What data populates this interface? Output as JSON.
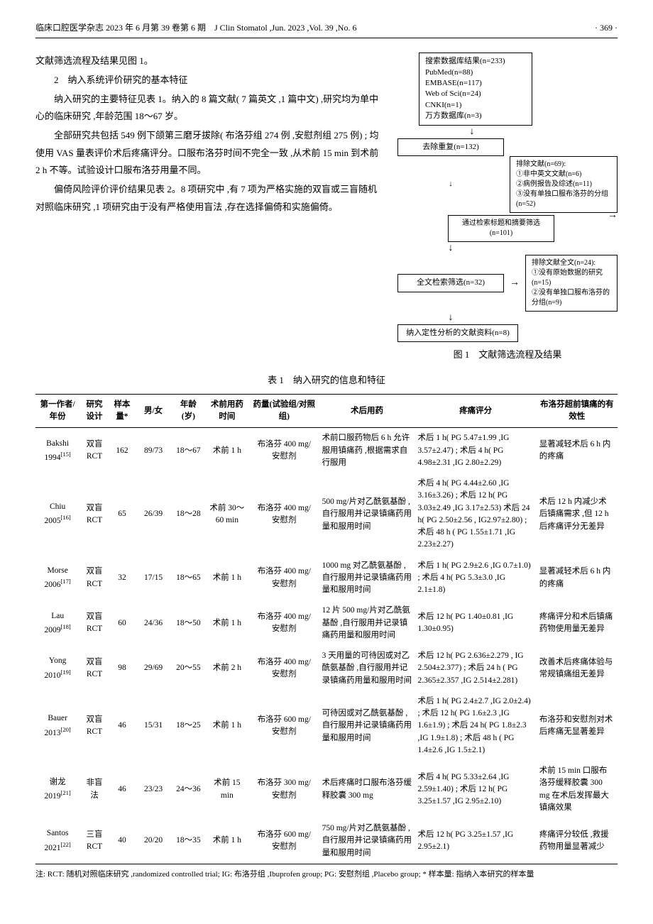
{
  "header": {
    "left": "临床口腔医学杂志 2023 年 6 月第 39 卷第 6 期　J Clin Stomatol ,Jun. 2023 ,Vol. 39 ,No. 6",
    "page": "· 369 ·"
  },
  "body": {
    "p1": "文献筛选流程及结果见图 1。",
    "p2": "2　纳入系统评价研究的基本特征",
    "p3": "纳入研究的主要特征见表 1。纳入的 8 篇文献( 7 篇英文 ,1 篇中文) ,研究均为单中心的临床研究 ,年龄范围 18～67 岁。",
    "p4": "全部研究共包括 549 例下颌第三磨牙拔除( 布洛芬组 274 例 ,安慰剂组 275 例) ; 均使用 VAS 量表评价术后疼痛评分。口服布洛芬时间不完全一致 ,从术前 15 min 到术前 2 h 不等。试验设计口服布洛芬用量不同。",
    "p5": "偏倚风险评价评价结果见表 2。8 项研究中 ,有 7 项为严格实施的双盲或三盲随机对照临床研究 ,1 项研究由于没有严格使用盲法 ,存在选择偏倚和实施偏倚。"
  },
  "flowchart": {
    "box1": "搜索数据库结果(n=233)\nPubMed(n=88)\nEMBASE(n=117)\nWeb of Sci(n=24)\nCNKI(n=1)\n万方数据库(n=3)",
    "box2": "去除重复(n=132)",
    "box3": "排除文献(n=69):\n①非中英文文献(n=6)\n②病例报告及综述(n=11)\n③没有单独口服布洛芬的分组(n=52)",
    "box4": "通过检索标题和摘要筛选(n=101)",
    "box5": "全文检索筛选(n=32)",
    "box6": "排除文献全文(n=24):\n①没有原始数据的研究(n=15)\n②没有单独口服布洛芬的分组(n=9)",
    "box7": "纳入定性分析的文献资料(n=8)",
    "caption": "图 1　文献筛选流程及结果"
  },
  "table": {
    "title": "表 1　纳入研究的信息和特征",
    "headers": {
      "author": "第一作者/年份",
      "design": "研究设计",
      "n": "样本量*",
      "sex": "男/女",
      "age": "年龄(岁)",
      "time": "术前用药时间",
      "dose": "药量(试验组/对照组)",
      "postop": "术后用药",
      "pain": "疼痛评分",
      "efficacy": "布洛芬超前镇痛的有效性"
    },
    "rows": [
      {
        "author": "Bakshi 1994[15]",
        "design": "双盲RCT",
        "n": "162",
        "sex": "89/73",
        "age": "18～67",
        "time": "术前 1 h",
        "dose": "布洛芬 400 mg/安慰剂",
        "postop": "术前口服药物后 6 h 允许服用镇痛药 ,根据需求自行服用",
        "pain": "术后 1 h( PG 5.47±1.99 ,IG 3.57±2.47) ; 术后 4 h( PG 4.98±2.31 ,IG 2.80±2.29)",
        "efficacy": "显著减轻术后 6 h 内的疼痛"
      },
      {
        "author": "Chiu 2005[16]",
        "design": "双盲RCT",
        "n": "65",
        "sex": "26/39",
        "age": "18～28",
        "time": "术前 30～60 min",
        "dose": "布洛芬 400 mg/安慰剂",
        "postop": "500 mg/片对乙酰氨基酚 ,自行服用并记录镇痛药用量和服用时间",
        "pain": "术后 4 h( PG 4.44±2.60 ,IG 3.16±3.26) ; 术后 12 h( PG 3.03±2.49 ,IG 3.17±2.53) 术后 24 h( PG 2.50±2.56 , IG2.97±2.80) ; 术后 48 h ( PG 1.55±1.71 ,IG 2.23±2.27)",
        "efficacy": "术后 12 h 内减少术后镇痛需求 ,但 12 h 后疼痛评分无差异"
      },
      {
        "author": "Morse 2006[17]",
        "design": "双盲RCT",
        "n": "32",
        "sex": "17/15",
        "age": "18～65",
        "time": "术前 1 h",
        "dose": "布洛芬 400 mg/安慰剂",
        "postop": "1000 mg 对乙酰氨基酚 ,自行服用并记录镇痛药用量和服用时间",
        "pain": "术后 1 h( PG 2.9±2.6 ,IG 0.7±1.0) ; 术后 4 h( PG 5.3±3.0 ,IG 2.1±1.8)",
        "efficacy": "显著减轻术后 6 h 内的疼痛"
      },
      {
        "author": "Lau 2009[18]",
        "design": "双盲RCT",
        "n": "60",
        "sex": "24/36",
        "age": "18～50",
        "time": "术前 1 h",
        "dose": "布洛芬 400 mg/安慰剂",
        "postop": "12 片 500 mg/片对乙酰氨基酚 ,自行服用并记录镇痛药用量和服用时间",
        "pain": "术后 12 h( PG 1.40±0.81 ,IG 1.30±0.95)",
        "efficacy": "疼痛评分和术后镇痛药物使用量无差异"
      },
      {
        "author": "Yong 2010[19]",
        "design": "双盲RCT",
        "n": "98",
        "sex": "29/69",
        "age": "20～55",
        "time": "术前 2 h",
        "dose": "布洛芬 400 mg/安慰剂",
        "postop": "3 天用量的可待因或对乙酰氨基酚 ,自行服用并记录镇痛药用量和服用时间",
        "pain": "术后 12 h( PG 2.636±2.279 , IG 2.504±2.377) ; 术后 24 h ( PG 2.365±2.357 ,IG 2.514±2.281)",
        "efficacy": "改善术后疼痛体验与常规镇痛组无差异"
      },
      {
        "author": "Bauer 2013[20]",
        "design": "双盲RCT",
        "n": "46",
        "sex": "15/31",
        "age": "18～25",
        "time": "术前 1 h",
        "dose": "布洛芬 600 mg/安慰剂",
        "postop": "可待因或对乙酰氨基酚 ,自行服用并记录镇痛药用量和服用时间",
        "pain": "术后 1 h( PG 2.4±2.7 ,IG 2.0±2.4) ; 术后 12 h( PG 1.6±2.3 ,IG 1.6±1.9) ; 术后 24 h( PG 1.8±2.3 ,IG 1.9±1.8) ; 术后 48 h ( PG 1.4±2.6 ,IG 1.5±2.1)",
        "efficacy": "布洛芬和安慰剂对术后疼痛无显著差异"
      },
      {
        "author": "谢龙 2019[21]",
        "design": "非盲法",
        "n": "46",
        "sex": "23/23",
        "age": "24～36",
        "time": "术前 15 min",
        "dose": "布洛芬 300 mg/安慰剂",
        "postop": "术后疼痛时口服布洛芬缓释胶囊 300 mg",
        "pain": "术后 4 h( PG 5.33±2.64 ,IG 2.59±1.40) ; 术后 12 h( PG 3.25±1.57 ,IG 2.95±2.10)",
        "efficacy": "术前 15 min 口服布洛芬缓释胶囊 300 mg 在术后发挥最大镇痛效果"
      },
      {
        "author": "Santos 2021[22]",
        "design": "三盲RCT",
        "n": "40",
        "sex": "20/20",
        "age": "18～35",
        "time": "术前 1 h",
        "dose": "布洛芬 600 mg/安慰剂",
        "postop": "750 mg/片对乙酰氨基酚 ,自行服用并记录镇痛药用量和服用时间",
        "pain": "术后 12 h( PG 3.25±1.57 ,IG 2.95±2.1)",
        "efficacy": "疼痛评分较低 ,救援药物用量显著减少"
      }
    ],
    "footnote": "注: RCT: 随机对照临床研究 ,randomized controlled trial; IG: 布洛芬组 ,Ibuprofen group; PG: 安慰剂组 ,Placebo group; * 样本量: 指纳入本研究的样本量"
  }
}
